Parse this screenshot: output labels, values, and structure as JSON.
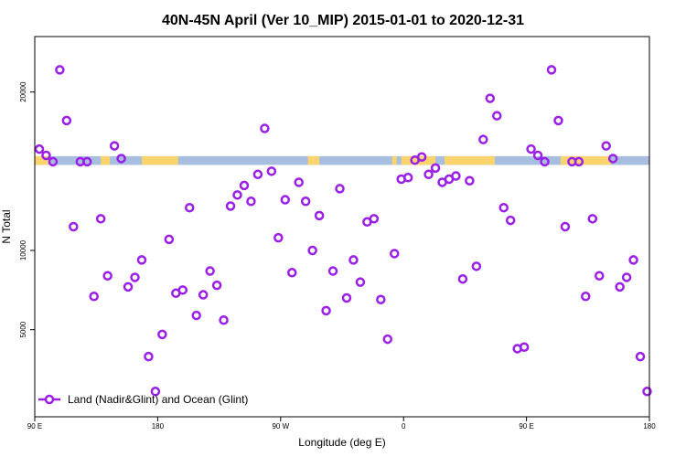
{
  "chart_data": {
    "type": "scatter",
    "title": "40N-45N April (Ver 10_MIP)   2015-01-01 to 2020-12-31",
    "xlabel": "Longitude (deg E)",
    "ylabel": "N Total",
    "xlim": [
      -90,
      180
    ],
    "ylim": [
      -500,
      23500
    ],
    "x_ticks": [
      {
        "value": -90,
        "label": "90 E"
      },
      {
        "value": -36,
        "label": "180"
      },
      {
        "value": 18,
        "label": "90 W"
      },
      {
        "value": 72,
        "label": "0"
      },
      {
        "value": 126,
        "label": "90 E"
      },
      {
        "value": 180,
        "label": "180"
      }
    ],
    "y_ticks": [
      {
        "value": 5000,
        "label": "5000"
      },
      {
        "value": 10000,
        "label": "10000"
      },
      {
        "value": 20000,
        "label": "20000"
      }
    ],
    "grid": false,
    "legend_position": "bottom-left",
    "series": [
      {
        "name": "Land (Nadir&Glint) and Ocean (Glint)",
        "color": "#9b1fe8",
        "marker": "hollow-circle-line",
        "points": [
          [
            -88,
            16400
          ],
          [
            -85,
            16000
          ],
          [
            -82,
            15600
          ],
          [
            -79,
            21400
          ],
          [
            -76,
            18200
          ],
          [
            -73,
            11500
          ],
          [
            -70,
            15600
          ],
          [
            -67,
            15600
          ],
          [
            -64,
            7100
          ],
          [
            -61,
            12000
          ],
          [
            -58,
            8400
          ],
          [
            -55,
            16600
          ],
          [
            -52,
            15800
          ],
          [
            -49,
            7700
          ],
          [
            -46,
            8300
          ],
          [
            -43,
            9400
          ],
          [
            -40,
            3300
          ],
          [
            -37,
            1100
          ],
          [
            -34,
            4700
          ],
          [
            -31,
            10700
          ],
          [
            -28,
            7300
          ],
          [
            -25,
            7500
          ],
          [
            -22,
            12700
          ],
          [
            -19,
            5900
          ],
          [
            -16,
            7200
          ],
          [
            -13,
            8700
          ],
          [
            -10,
            7800
          ],
          [
            -7,
            5600
          ],
          [
            -4,
            12800
          ],
          [
            -1,
            13500
          ],
          [
            2,
            14100
          ],
          [
            5,
            13100
          ],
          [
            8,
            14800
          ],
          [
            11,
            17700
          ],
          [
            14,
            15000
          ],
          [
            17,
            10800
          ],
          [
            20,
            13200
          ],
          [
            23,
            8600
          ],
          [
            26,
            14300
          ],
          [
            29,
            13100
          ],
          [
            32,
            10000
          ],
          [
            35,
            12200
          ],
          [
            38,
            6200
          ],
          [
            41,
            8700
          ],
          [
            44,
            13900
          ],
          [
            47,
            7000
          ],
          [
            50,
            9400
          ],
          [
            53,
            8000
          ],
          [
            56,
            11800
          ],
          [
            59,
            12000
          ],
          [
            62,
            6900
          ],
          [
            65,
            4400
          ],
          [
            68,
            9800
          ],
          [
            71,
            14500
          ],
          [
            74,
            14600
          ],
          [
            77,
            15700
          ],
          [
            80,
            15900
          ],
          [
            83,
            14800
          ],
          [
            86,
            15200
          ],
          [
            89,
            14300
          ],
          [
            92,
            14500
          ],
          [
            95,
            14700
          ],
          [
            98,
            8200
          ],
          [
            101,
            14400
          ],
          [
            104,
            9000
          ],
          [
            107,
            17000
          ],
          [
            110,
            19600
          ],
          [
            113,
            18500
          ],
          [
            116,
            12700
          ],
          [
            119,
            11900
          ],
          [
            122,
            3800
          ],
          [
            125,
            3900
          ],
          [
            128,
            16400
          ],
          [
            131,
            16000
          ],
          [
            134,
            15600
          ],
          [
            137,
            21400
          ],
          [
            140,
            18200
          ],
          [
            143,
            11500
          ],
          [
            146,
            15600
          ],
          [
            149,
            15600
          ],
          [
            152,
            7100
          ],
          [
            155,
            12000
          ],
          [
            158,
            8400
          ],
          [
            161,
            16600
          ],
          [
            164,
            15800
          ],
          [
            167,
            7700
          ],
          [
            170,
            8300
          ],
          [
            173,
            9400
          ],
          [
            176,
            3300
          ],
          [
            179,
            1100
          ]
        ]
      }
    ],
    "background_band": {
      "y_range": [
        15400,
        15950
      ],
      "colors": {
        "ocean": "#a8bede",
        "land": "#fbd46e"
      },
      "land_segments": [
        [
          -90,
          -84
        ],
        [
          -61,
          -57
        ],
        [
          -43,
          -27
        ],
        [
          30,
          35
        ],
        [
          67,
          69
        ],
        [
          71,
          86
        ],
        [
          90,
          112
        ],
        [
          141,
          163
        ]
      ]
    }
  }
}
